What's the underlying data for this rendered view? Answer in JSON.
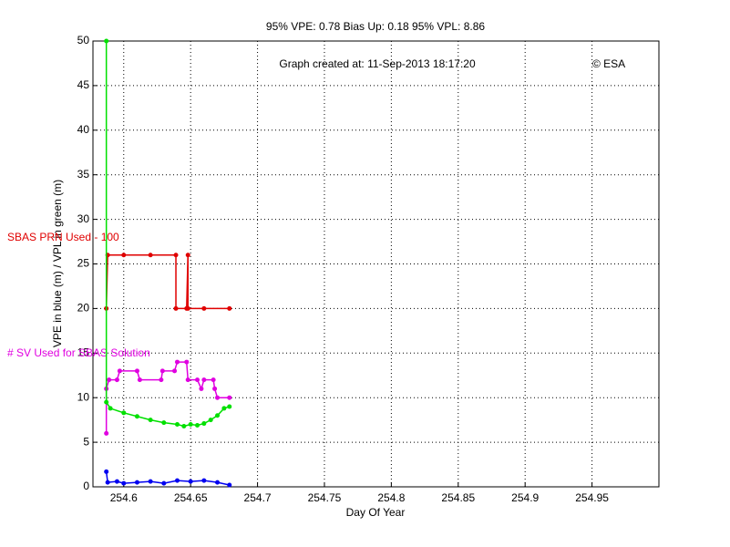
{
  "chart_data": {
    "type": "line",
    "title": "95% VPE: 0.78  Bias Up: 0.18  95% VPL: 8.86",
    "annotation": "Graph created at: 11-Sep-2013 18:17:20",
    "credit": "© ESA",
    "xlabel": "Day Of Year",
    "ylabel": "VPE in blue (m) / VPL in green (m)",
    "xlim": [
      254.577,
      255.0
    ],
    "ylim": [
      0,
      50
    ],
    "xticks": [
      254.6,
      254.65,
      254.7,
      254.75,
      254.8,
      254.85,
      254.9,
      254.95
    ],
    "yticks": [
      0,
      5,
      10,
      15,
      20,
      25,
      30,
      35,
      40,
      45,
      50
    ],
    "grid": true,
    "series": [
      {
        "name": "SBAS PRN Used - 100",
        "color": "#e00000",
        "x": [
          254.587,
          254.588,
          254.6,
          254.62,
          254.639,
          254.639,
          254.647,
          254.648,
          254.648,
          254.66,
          254.679
        ],
        "values": [
          20,
          26,
          26,
          26,
          26,
          20,
          20,
          26,
          20,
          20,
          20
        ]
      },
      {
        "name": "# SV Used for SBAS Solution",
        "color": "#e000e0",
        "x": [
          254.587,
          254.587,
          254.589,
          254.595,
          254.597,
          254.61,
          254.612,
          254.628,
          254.629,
          254.638,
          254.64,
          254.647,
          254.648,
          254.655,
          254.658,
          254.66,
          254.667,
          254.668,
          254.67,
          254.679
        ],
        "values": [
          6,
          11,
          12,
          12,
          13,
          13,
          12,
          12,
          13,
          13,
          14,
          14,
          12,
          12,
          11,
          12,
          12,
          11,
          10,
          10
        ]
      },
      {
        "color": "#00e000",
        "x": [
          254.587,
          254.587,
          254.59,
          254.6,
          254.61,
          254.62,
          254.63,
          254.64,
          254.645,
          254.65,
          254.655,
          254.66,
          254.665,
          254.67,
          254.675,
          254.679
        ],
        "values": [
          50,
          9.5,
          8.8,
          8.3,
          7.9,
          7.5,
          7.2,
          7.0,
          6.8,
          7.0,
          6.9,
          7.1,
          7.5,
          8.0,
          8.8,
          9.0
        ]
      },
      {
        "color": "#0000f0",
        "x": [
          254.587,
          254.588,
          254.595,
          254.6,
          254.61,
          254.62,
          254.63,
          254.64,
          254.65,
          254.66,
          254.67,
          254.679
        ],
        "values": [
          1.7,
          0.5,
          0.6,
          0.4,
          0.5,
          0.6,
          0.4,
          0.7,
          0.6,
          0.7,
          0.5,
          0.2
        ]
      }
    ]
  }
}
